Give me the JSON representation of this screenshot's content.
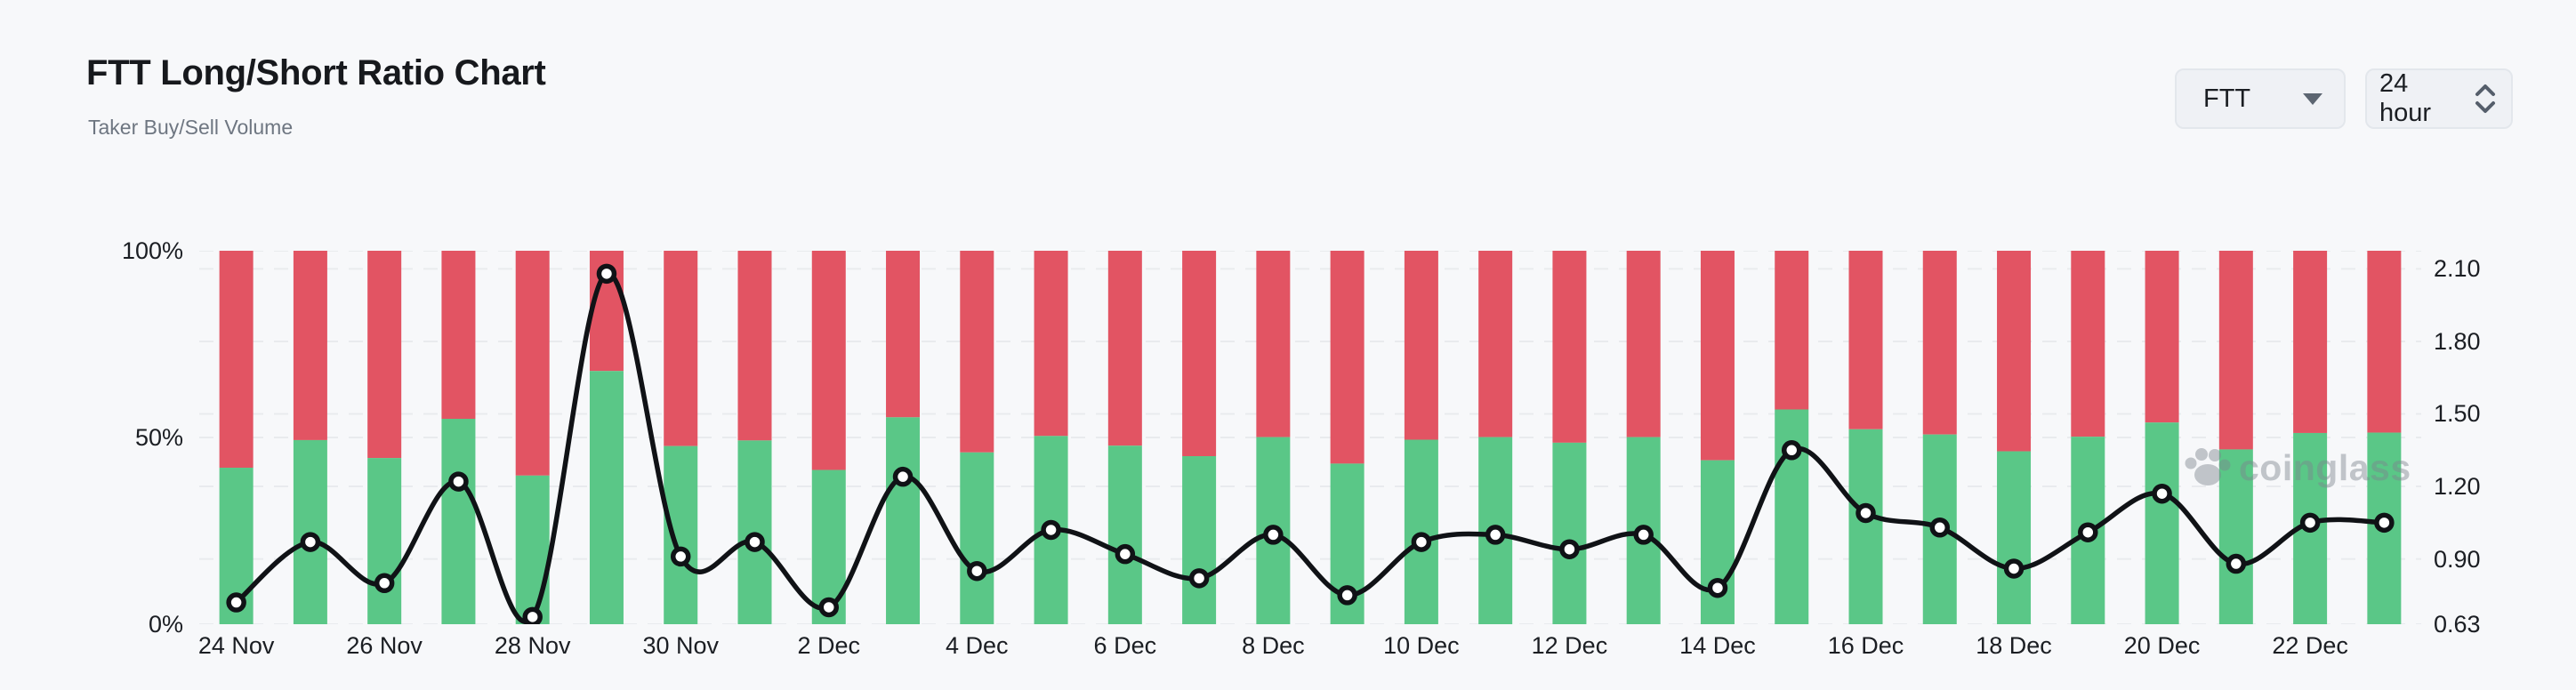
{
  "header": {
    "title": "FTT Long/Short Ratio Chart",
    "subtitle": "Taker Buy/Sell Volume"
  },
  "controls": {
    "symbol_select": {
      "value": "FTT"
    },
    "interval_select": {
      "value": "24 hour"
    }
  },
  "watermark": {
    "text": "coinglass"
  },
  "chart_data": {
    "type": "bar",
    "subtype": "stacked-percent-bars-with-line-overlay",
    "categories": [
      "24 Nov",
      "25 Nov",
      "26 Nov",
      "27 Nov",
      "28 Nov",
      "29 Nov",
      "30 Nov",
      "1 Dec",
      "2 Dec",
      "3 Dec",
      "4 Dec",
      "5 Dec",
      "6 Dec",
      "7 Dec",
      "8 Dec",
      "9 Dec",
      "10 Dec",
      "11 Dec",
      "12 Dec",
      "13 Dec",
      "14 Dec",
      "15 Dec",
      "16 Dec",
      "17 Dec",
      "18 Dec",
      "19 Dec",
      "20 Dec",
      "21 Dec",
      "22 Dec",
      "23 Dec"
    ],
    "x_axis_labeled_ticks": [
      "24 Nov",
      "26 Nov",
      "28 Nov",
      "30 Nov",
      "2 Dec",
      "4 Dec",
      "6 Dec",
      "8 Dec",
      "10 Dec",
      "12 Dec",
      "14 Dec",
      "16 Dec",
      "18 Dec",
      "20 Dec",
      "22 Dec"
    ],
    "series": [
      {
        "name": "Taker Buy Volume %",
        "type": "bar",
        "stack": "volume",
        "color": "#5ac787",
        "values": [
          41.9,
          49.3,
          44.5,
          55.0,
          39.8,
          67.8,
          47.7,
          49.2,
          41.3,
          55.4,
          46.0,
          50.4,
          47.8,
          45.0,
          50.1,
          43.0,
          49.4,
          50.1,
          48.6,
          50.1,
          43.9,
          57.5,
          52.2,
          50.8,
          46.3,
          50.2,
          54.0,
          46.8,
          51.2,
          51.3
        ]
      },
      {
        "name": "Taker Sell Volume %",
        "type": "bar",
        "stack": "volume",
        "color": "#e25463",
        "values": [
          58.1,
          50.7,
          55.5,
          45.0,
          60.2,
          32.2,
          52.3,
          50.8,
          58.7,
          44.6,
          54.0,
          49.6,
          52.2,
          55.0,
          49.9,
          57.0,
          50.6,
          49.9,
          51.4,
          49.9,
          56.1,
          42.5,
          47.8,
          49.2,
          53.7,
          49.8,
          46.0,
          53.2,
          48.8,
          48.7
        ]
      },
      {
        "name": "Long/Short Ratio",
        "type": "line",
        "color": "#101216",
        "values": [
          0.72,
          0.97,
          0.8,
          1.22,
          0.66,
          2.08,
          0.91,
          0.97,
          0.7,
          1.24,
          0.85,
          1.02,
          0.92,
          0.82,
          1.0,
          0.75,
          0.97,
          1.0,
          0.94,
          1.0,
          0.78,
          1.35,
          1.09,
          1.03,
          0.86,
          1.01,
          1.17,
          0.88,
          1.05,
          1.05
        ]
      }
    ],
    "y_axis_left": {
      "ticks": [
        "0%",
        "50%",
        "100%"
      ],
      "tick_values": [
        0,
        50,
        100
      ],
      "min": 0,
      "max": 100
    },
    "y_axis_right": {
      "ticks": [
        "0.63",
        "0.90",
        "1.20",
        "1.50",
        "1.80",
        "2.10"
      ],
      "tick_values": [
        0.63,
        0.9,
        1.2,
        1.5,
        1.8,
        2.1
      ],
      "min": 0.63,
      "max": 2.175
    },
    "grid": true,
    "legend": "none",
    "colors": {
      "grid": "#e9ebee",
      "axis_text": "#1b1e23",
      "point_fill": "#ffffff"
    }
  }
}
